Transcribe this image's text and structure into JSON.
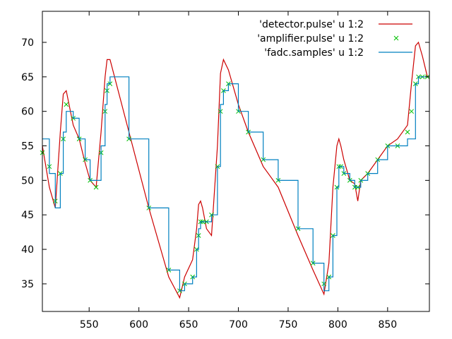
{
  "chart_data": {
    "type": "line",
    "title": "",
    "xlabel": "",
    "ylabel": "",
    "xlim": [
      503,
      892
    ],
    "ylim": [
      31,
      74.5
    ],
    "xticks": [
      550,
      600,
      650,
      700,
      750,
      800,
      850
    ],
    "yticks": [
      35,
      40,
      45,
      50,
      55,
      60,
      65,
      70
    ],
    "grid": false,
    "legend_position": "top-right",
    "series": [
      {
        "name": "'detector.pulse' u 1:2",
        "style": "line",
        "color": "#cc0000",
        "x": [
          503,
          510,
          516,
          521,
          524,
          527,
          534,
          540,
          546,
          551,
          557,
          562,
          566,
          568,
          571,
          590,
          610,
          630,
          641,
          646,
          654,
          658,
          660,
          662,
          664,
          668,
          673,
          679,
          682,
          685,
          690,
          700,
          710,
          725,
          740,
          760,
          775,
          786,
          791,
          795,
          799,
          801,
          803,
          806,
          812,
          817,
          820,
          823,
          830,
          840,
          850,
          860,
          870,
          874,
          878,
          881,
          885,
          890
        ],
        "y": [
          55,
          49,
          46,
          57,
          62.5,
          63,
          58,
          56,
          52.5,
          50,
          49,
          57,
          65,
          67.5,
          67.5,
          57,
          46,
          36,
          33,
          36,
          38.5,
          43,
          46.5,
          47,
          46,
          43,
          42,
          55,
          65.5,
          67.5,
          66,
          61,
          57,
          52,
          49,
          42,
          37,
          33.5,
          38,
          49,
          55,
          56,
          55,
          53,
          50,
          49.5,
          47,
          50,
          51,
          53,
          55,
          56,
          58,
          64,
          69.5,
          70,
          68,
          65
        ]
      },
      {
        "name": "'amplifier.pulse' u 1:2",
        "style": "points",
        "marker": "x",
        "color": "#00c000",
        "x": [
          503,
          510,
          516,
          521,
          524,
          527,
          534,
          540,
          546,
          551,
          557,
          562,
          566,
          568,
          571,
          590,
          610,
          630,
          641,
          646,
          654,
          658,
          660,
          662,
          664,
          668,
          673,
          679,
          682,
          685,
          690,
          700,
          710,
          725,
          740,
          760,
          775,
          786,
          791,
          795,
          799,
          801,
          803,
          806,
          812,
          817,
          820,
          823,
          830,
          840,
          850,
          860,
          870,
          874,
          878,
          881,
          885,
          890
        ],
        "y": [
          54,
          52,
          47,
          51,
          56,
          61,
          59,
          56,
          53,
          50,
          49,
          54,
          60,
          63,
          64,
          56,
          46,
          37,
          34,
          35,
          36,
          40,
          42,
          44,
          44,
          44,
          45,
          52,
          60,
          63,
          64,
          60,
          57,
          53,
          50,
          43,
          38,
          35,
          36,
          42,
          49,
          52,
          52,
          51,
          50,
          49,
          49,
          50,
          51,
          53,
          55,
          55,
          57,
          60,
          64,
          65,
          65,
          65
        ]
      },
      {
        "name": "'fadc.samples' u 1:2",
        "style": "steps",
        "color": "#0080c0",
        "x": [
          503,
          510,
          516,
          521,
          524,
          527,
          534,
          540,
          546,
          551,
          557,
          562,
          566,
          568,
          571,
          590,
          610,
          630,
          641,
          646,
          654,
          658,
          660,
          662,
          664,
          668,
          673,
          679,
          682,
          685,
          690,
          700,
          710,
          725,
          740,
          760,
          775,
          786,
          791,
          795,
          799,
          801,
          803,
          806,
          812,
          817,
          820,
          823,
          830,
          840,
          850,
          860,
          870,
          874,
          878,
          881,
          885,
          890
        ],
        "y": [
          56,
          51,
          46,
          51,
          57,
          60,
          59,
          56,
          53,
          50,
          50,
          55,
          61,
          64,
          65,
          56,
          46,
          37,
          34,
          35,
          36,
          40,
          43,
          44,
          44,
          44,
          45,
          52,
          61,
          63,
          64,
          60,
          57,
          53,
          50,
          43,
          38,
          34,
          36,
          42,
          49,
          52,
          52,
          51,
          50,
          49,
          49,
          50,
          51,
          53,
          55,
          55,
          56,
          56,
          64,
          65,
          65,
          65
        ]
      }
    ]
  }
}
